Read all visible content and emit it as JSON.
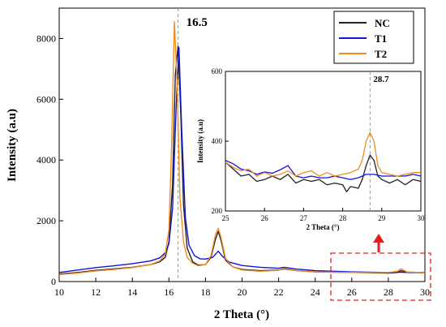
{
  "chart_data": [
    {
      "type": "line",
      "title": "",
      "xlabel": "2 Theta (°)",
      "ylabel": "Intensity (a.u)",
      "xlim": [
        10,
        30
      ],
      "ylim": [
        0,
        9000
      ],
      "x_ticks": [
        "10",
        "12",
        "14",
        "16",
        "18",
        "20",
        "22",
        "24",
        "26",
        "28",
        "30"
      ],
      "y_ticks": [
        "0",
        "2000",
        "4000",
        "6000",
        "8000"
      ],
      "legend": {
        "placement": "top-right",
        "entries": [
          "NC",
          "T1",
          "T2"
        ]
      },
      "annotations": [
        {
          "text": "16.5",
          "x": 16.5
        }
      ],
      "series": [
        {
          "name": "NC",
          "color": "#222222",
          "points": [
            [
              10,
              250
            ],
            [
              11,
              300
            ],
            [
              12,
              370
            ],
            [
              13,
              420
            ],
            [
              14,
              470
            ],
            [
              15,
              560
            ],
            [
              15.5,
              650
            ],
            [
              15.8,
              800
            ],
            [
              16.0,
              1300
            ],
            [
              16.2,
              3200
            ],
            [
              16.35,
              6800
            ],
            [
              16.5,
              7750
            ],
            [
              16.65,
              5500
            ],
            [
              16.8,
              2500
            ],
            [
              17.0,
              1100
            ],
            [
              17.3,
              650
            ],
            [
              17.6,
              540
            ],
            [
              18.0,
              560
            ],
            [
              18.3,
              800
            ],
            [
              18.55,
              1400
            ],
            [
              18.7,
              1650
            ],
            [
              18.85,
              1350
            ],
            [
              19.1,
              700
            ],
            [
              19.5,
              480
            ],
            [
              20,
              400
            ],
            [
              21,
              360
            ],
            [
              22,
              380
            ],
            [
              22.3,
              420
            ],
            [
              23,
              360
            ],
            [
              24,
              320
            ],
            [
              25,
              310
            ],
            [
              26,
              300
            ],
            [
              27,
              290
            ],
            [
              28,
              280
            ],
            [
              28.5,
              300
            ],
            [
              28.7,
              360
            ],
            [
              29,
              300
            ],
            [
              30,
              290
            ]
          ]
        },
        {
          "name": "T1",
          "color": "#1414d8",
          "points": [
            [
              10,
              300
            ],
            [
              11,
              380
            ],
            [
              12,
              460
            ],
            [
              13,
              520
            ],
            [
              14,
              590
            ],
            [
              15,
              680
            ],
            [
              15.5,
              780
            ],
            [
              15.8,
              950
            ],
            [
              16.0,
              1250
            ],
            [
              16.2,
              2400
            ],
            [
              16.4,
              5800
            ],
            [
              16.55,
              7700
            ],
            [
              16.7,
              5000
            ],
            [
              16.9,
              2100
            ],
            [
              17.1,
              1200
            ],
            [
              17.4,
              850
            ],
            [
              17.7,
              750
            ],
            [
              18.0,
              740
            ],
            [
              18.4,
              800
            ],
            [
              18.7,
              1000
            ],
            [
              18.9,
              850
            ],
            [
              19.3,
              640
            ],
            [
              20,
              530
            ],
            [
              21,
              470
            ],
            [
              22,
              440
            ],
            [
              22.3,
              470
            ],
            [
              23,
              410
            ],
            [
              24,
              360
            ],
            [
              25,
              340
            ],
            [
              26,
              320
            ],
            [
              27,
              310
            ],
            [
              28,
              300
            ],
            [
              28.7,
              310
            ],
            [
              29,
              300
            ],
            [
              30,
              300
            ]
          ]
        },
        {
          "name": "T2",
          "color": "#f08c1e",
          "points": [
            [
              10,
              230
            ],
            [
              11,
              280
            ],
            [
              12,
              350
            ],
            [
              13,
              400
            ],
            [
              14,
              460
            ],
            [
              15,
              560
            ],
            [
              15.5,
              680
            ],
            [
              15.8,
              900
            ],
            [
              16.0,
              1700
            ],
            [
              16.15,
              4500
            ],
            [
              16.3,
              8550
            ],
            [
              16.45,
              6500
            ],
            [
              16.6,
              2800
            ],
            [
              16.8,
              1300
            ],
            [
              17.0,
              800
            ],
            [
              17.3,
              600
            ],
            [
              17.6,
              520
            ],
            [
              18.0,
              560
            ],
            [
              18.3,
              850
            ],
            [
              18.55,
              1550
            ],
            [
              18.7,
              1750
            ],
            [
              18.85,
              1450
            ],
            [
              19.1,
              750
            ],
            [
              19.5,
              480
            ],
            [
              20,
              380
            ],
            [
              21,
              340
            ],
            [
              22,
              370
            ],
            [
              22.3,
              440
            ],
            [
              23,
              360
            ],
            [
              24,
              320
            ],
            [
              25,
              310
            ],
            [
              26,
              300
            ],
            [
              27,
              300
            ],
            [
              28,
              300
            ],
            [
              28.5,
              340
            ],
            [
              28.7,
              420
            ],
            [
              29,
              320
            ],
            [
              30,
              290
            ]
          ]
        }
      ]
    },
    {
      "type": "line",
      "title": "",
      "xlabel": "2 Theta (°)",
      "ylabel": "Intensity (a.u)",
      "xlim": [
        25,
        30
      ],
      "ylim": [
        200,
        600
      ],
      "x_ticks": [
        "25",
        "26",
        "27",
        "28",
        "29",
        "30"
      ],
      "y_ticks": [
        "200",
        "400",
        "600"
      ],
      "annotations": [
        {
          "text": "28.7",
          "x": 28.7
        }
      ],
      "series": [
        {
          "name": "NC",
          "color": "#222222",
          "points": [
            [
              25,
              340
            ],
            [
              25.2,
              320
            ],
            [
              25.4,
              300
            ],
            [
              25.6,
              305
            ],
            [
              25.8,
              285
            ],
            [
              26,
              290
            ],
            [
              26.2,
              300
            ],
            [
              26.4,
              290
            ],
            [
              26.6,
              305
            ],
            [
              26.8,
              280
            ],
            [
              27,
              290
            ],
            [
              27.2,
              285
            ],
            [
              27.4,
              290
            ],
            [
              27.6,
              275
            ],
            [
              27.8,
              280
            ],
            [
              28,
              275
            ],
            [
              28.1,
              255
            ],
            [
              28.2,
              270
            ],
            [
              28.4,
              265
            ],
            [
              28.5,
              290
            ],
            [
              28.6,
              330
            ],
            [
              28.7,
              360
            ],
            [
              28.8,
              345
            ],
            [
              28.9,
              300
            ],
            [
              29,
              290
            ],
            [
              29.2,
              280
            ],
            [
              29.4,
              290
            ],
            [
              29.6,
              275
            ],
            [
              29.8,
              290
            ],
            [
              30,
              285
            ]
          ]
        },
        {
          "name": "T1",
          "color": "#1414d8",
          "points": [
            [
              25,
              345
            ],
            [
              25.2,
              335
            ],
            [
              25.4,
              320
            ],
            [
              25.6,
              315
            ],
            [
              25.8,
              305
            ],
            [
              26,
              312
            ],
            [
              26.2,
              308
            ],
            [
              26.4,
              318
            ],
            [
              26.6,
              330
            ],
            [
              26.8,
              300
            ],
            [
              27,
              295
            ],
            [
              27.2,
              300
            ],
            [
              27.4,
              295
            ],
            [
              27.6,
              295
            ],
            [
              27.8,
              300
            ],
            [
              28,
              295
            ],
            [
              28.2,
              290
            ],
            [
              28.4,
              295
            ],
            [
              28.6,
              305
            ],
            [
              28.8,
              305
            ],
            [
              29,
              300
            ],
            [
              29.2,
              300
            ],
            [
              29.4,
              300
            ],
            [
              29.6,
              300
            ],
            [
              29.8,
              305
            ],
            [
              30,
              300
            ]
          ]
        },
        {
          "name": "T2",
          "color": "#f08c1e",
          "points": [
            [
              25,
              340
            ],
            [
              25.2,
              325
            ],
            [
              25.4,
              315
            ],
            [
              25.6,
              320
            ],
            [
              25.8,
              300
            ],
            [
              26,
              310
            ],
            [
              26.2,
              300
            ],
            [
              26.4,
              305
            ],
            [
              26.6,
              315
            ],
            [
              26.8,
              300
            ],
            [
              27,
              310
            ],
            [
              27.2,
              315
            ],
            [
              27.4,
              300
            ],
            [
              27.6,
              310
            ],
            [
              27.8,
              300
            ],
            [
              28,
              305
            ],
            [
              28.2,
              310
            ],
            [
              28.4,
              320
            ],
            [
              28.5,
              345
            ],
            [
              28.6,
              400
            ],
            [
              28.7,
              425
            ],
            [
              28.8,
              400
            ],
            [
              28.9,
              330
            ],
            [
              29,
              310
            ],
            [
              29.2,
              305
            ],
            [
              29.4,
              300
            ],
            [
              29.6,
              305
            ],
            [
              29.8,
              310
            ],
            [
              30,
              310
            ]
          ]
        }
      ]
    }
  ]
}
